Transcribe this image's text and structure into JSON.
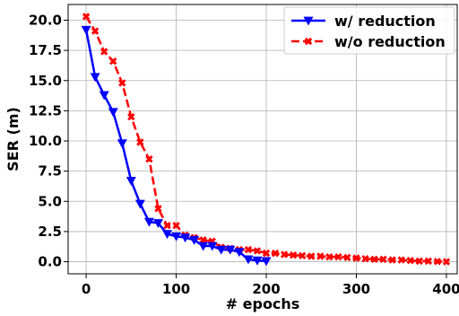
{
  "chart_data": {
    "type": "line",
    "title": "",
    "xlabel": "# epochs",
    "ylabel": "SER (m)",
    "xlim": [
      -20,
      412
    ],
    "ylim": [
      -1.0,
      21.3
    ],
    "xticks": [
      0,
      100,
      200,
      300,
      400
    ],
    "yticks": [
      0.0,
      2.5,
      5.0,
      7.5,
      10.0,
      12.5,
      15.0,
      17.5,
      20.0
    ],
    "xtick_labels": [
      "0",
      "100",
      "200",
      "300",
      "400"
    ],
    "ytick_labels": [
      "0.0",
      "2.5",
      "5.0",
      "7.5",
      "10.0",
      "12.5",
      "15.0",
      "17.5",
      "20.0"
    ],
    "grid": true,
    "legend_position": "top-right",
    "series": [
      {
        "name": "w/ reduction",
        "color": "#0000ff",
        "line_style": "solid",
        "marker": "triangle-down",
        "x": [
          0,
          10,
          20,
          30,
          40,
          50,
          60,
          70,
          80,
          90,
          100,
          110,
          120,
          130,
          140,
          150,
          160,
          170,
          180,
          190,
          200
        ],
        "y": [
          19.2,
          15.3,
          13.8,
          12.4,
          9.8,
          6.7,
          4.8,
          3.3,
          3.2,
          2.3,
          2.1,
          2.0,
          1.8,
          1.3,
          1.3,
          1.0,
          1.0,
          0.8,
          0.2,
          0.1,
          0.05
        ]
      },
      {
        "name": "w/o reduction",
        "color": "#ff0000",
        "line_style": "dashed",
        "marker": "x-filled",
        "x": [
          0,
          10,
          20,
          30,
          40,
          50,
          60,
          70,
          80,
          90,
          100,
          110,
          120,
          130,
          140,
          150,
          160,
          170,
          180,
          190,
          200,
          210,
          220,
          230,
          240,
          250,
          260,
          270,
          280,
          290,
          300,
          310,
          320,
          330,
          340,
          350,
          360,
          370,
          380,
          390,
          400
        ],
        "y": [
          20.3,
          19.1,
          17.4,
          16.6,
          14.8,
          12.0,
          9.9,
          8.5,
          4.4,
          3.0,
          3.0,
          2.2,
          2.0,
          1.8,
          1.7,
          1.2,
          1.1,
          1.0,
          1.0,
          0.9,
          0.7,
          0.7,
          0.6,
          0.55,
          0.5,
          0.45,
          0.45,
          0.4,
          0.4,
          0.35,
          0.3,
          0.25,
          0.2,
          0.2,
          0.15,
          0.15,
          0.1,
          0.05,
          0.05,
          0.02,
          0.0
        ]
      }
    ]
  }
}
